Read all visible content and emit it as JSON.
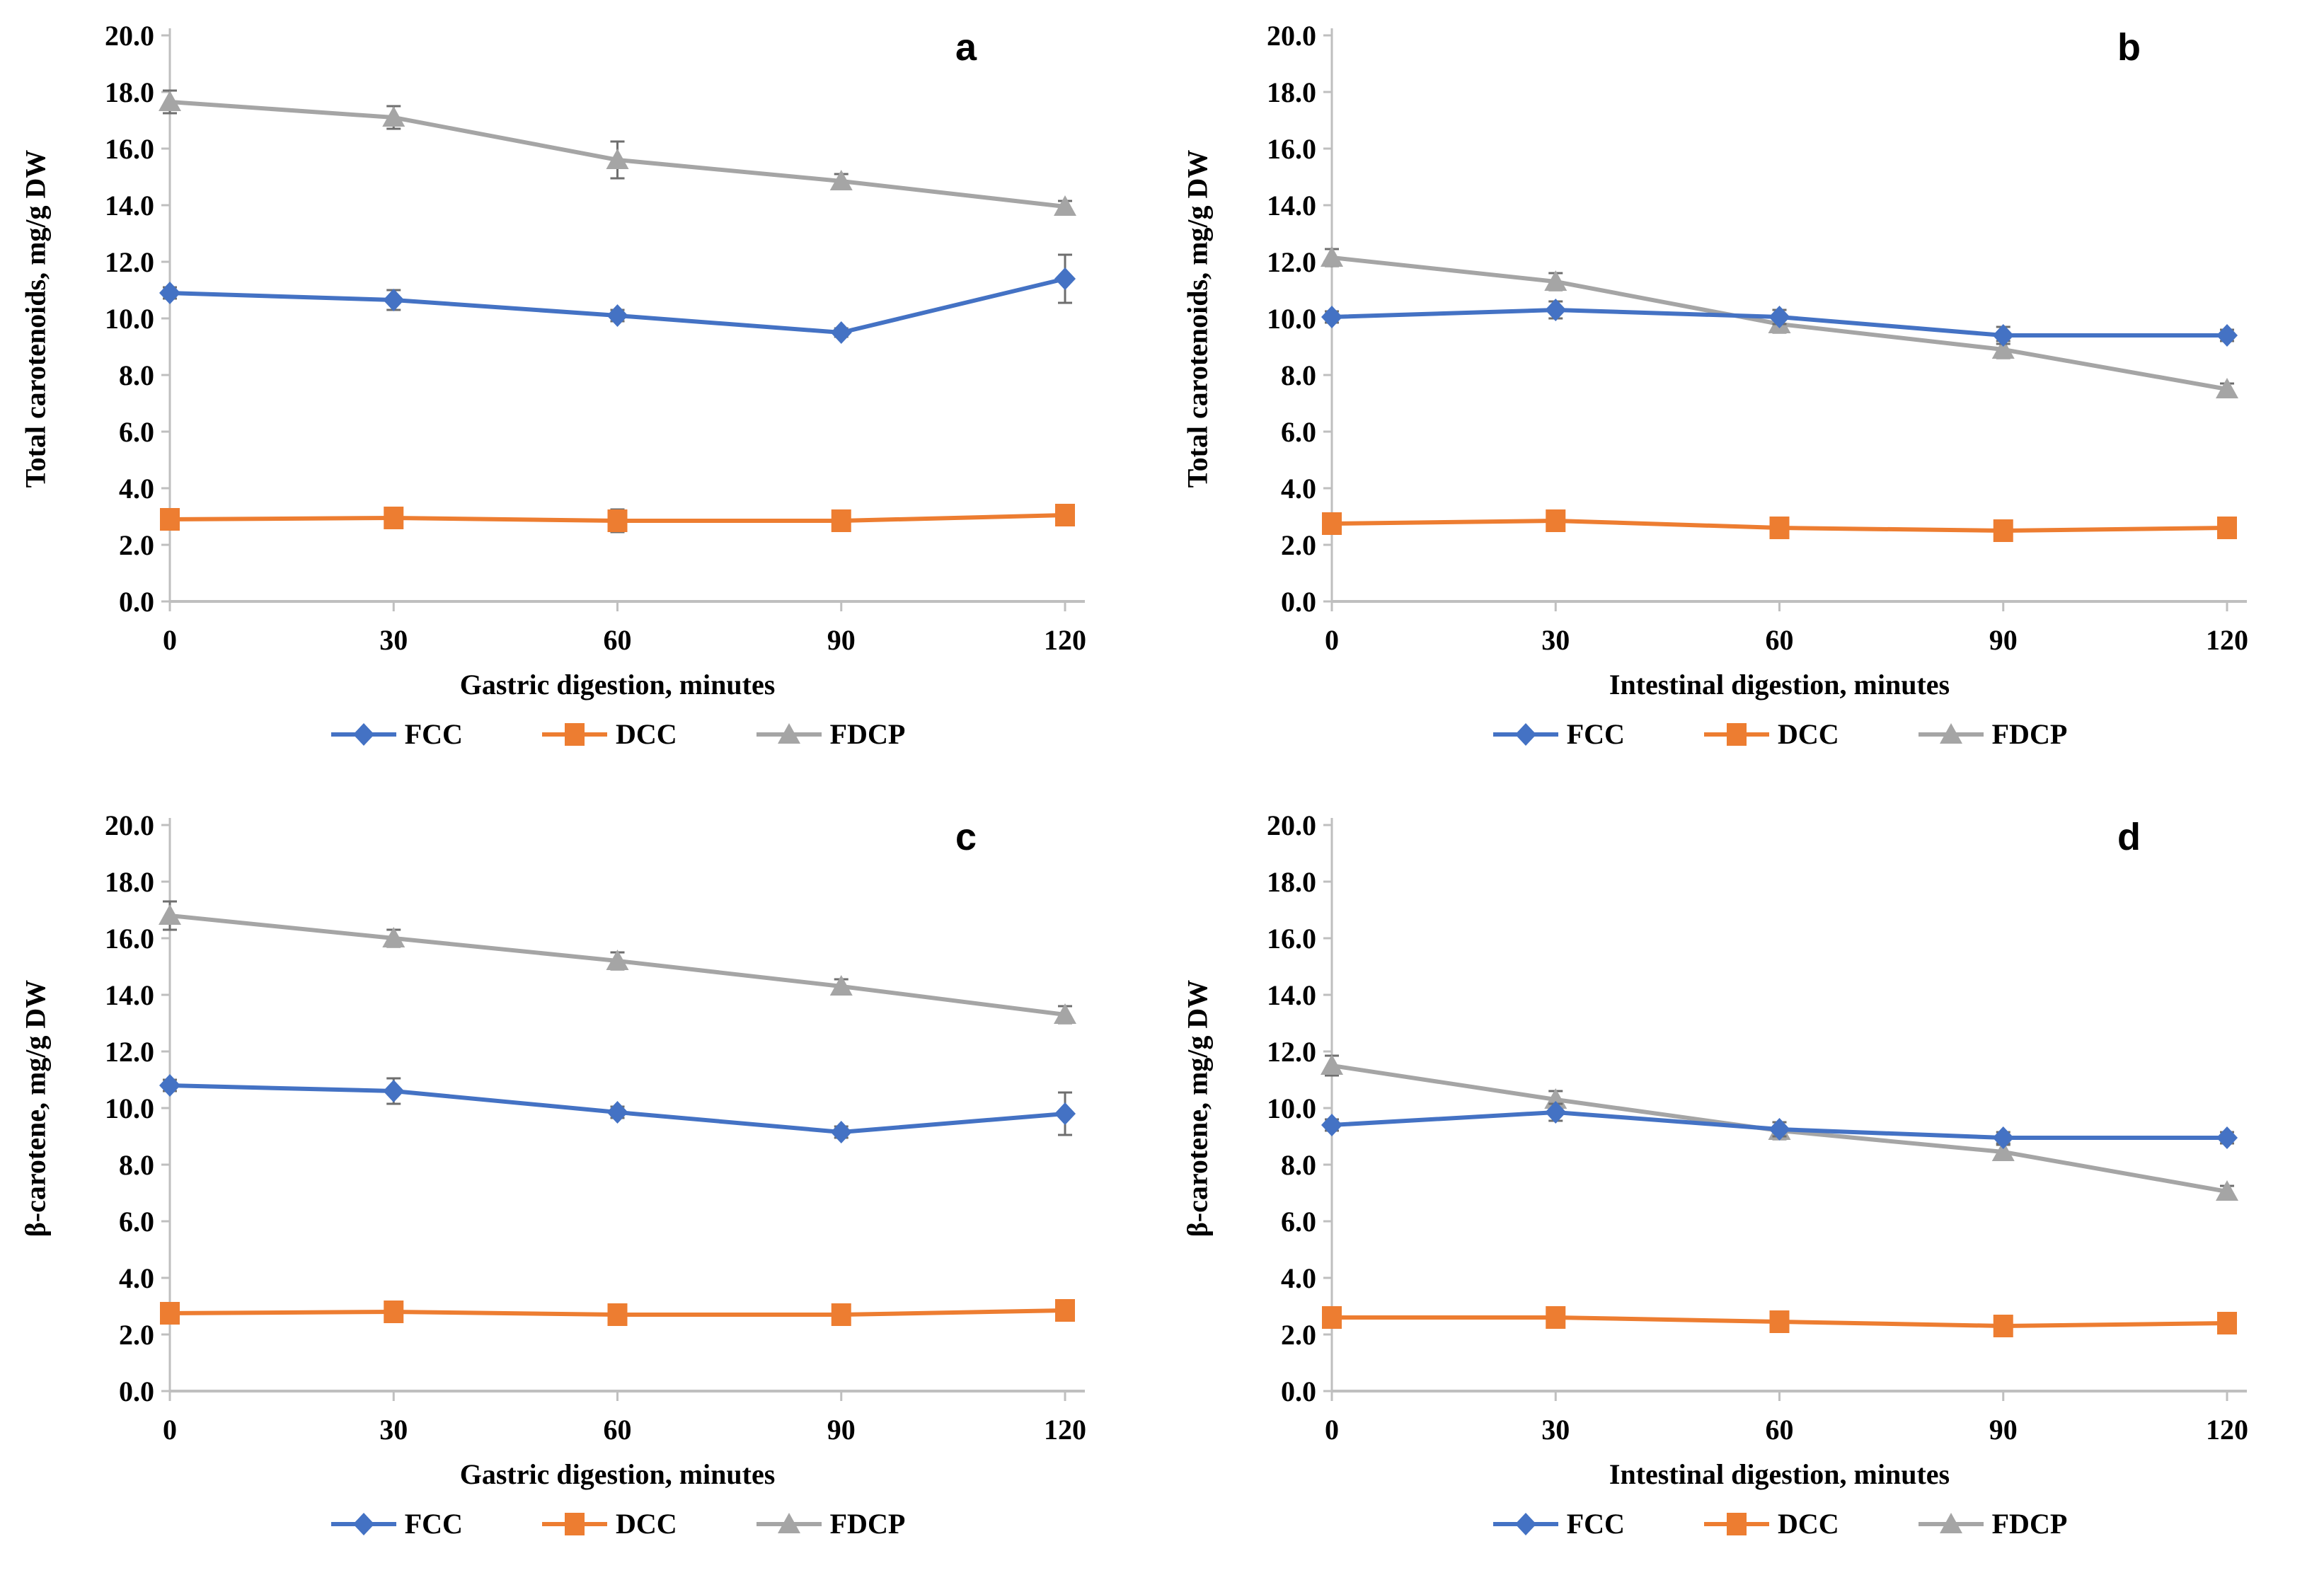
{
  "colors": {
    "fcc": "#4472C4",
    "dcc": "#ED7D31",
    "fdcp": "#A5A5A5",
    "error_bar": "#6e6e6e",
    "axis": "#BFBFBF",
    "text": "#000000"
  },
  "chart_data": [
    {
      "id": "a",
      "type": "line",
      "panel_label": "a",
      "ylabel": "Total carotenoids, mg/g DW",
      "xlabel": "Gastric digestion, minutes",
      "x": [
        0,
        30,
        60,
        90,
        120
      ],
      "ylim": [
        0,
        20
      ],
      "ytick_step": 2,
      "grid": false,
      "legend_position": "bottom",
      "series": [
        {
          "name": "FCC",
          "marker": "diamond",
          "color_key": "fcc",
          "values": [
            10.9,
            10.65,
            10.1,
            9.5,
            11.4
          ],
          "errors": [
            0.2,
            0.35,
            0.2,
            0.15,
            0.85
          ]
        },
        {
          "name": "DCC",
          "marker": "square",
          "color_key": "dcc",
          "values": [
            2.9,
            2.95,
            2.85,
            2.85,
            3.05
          ],
          "errors": [
            0.3,
            0.35,
            0.4,
            0.35,
            0.3
          ]
        },
        {
          "name": "FDCP",
          "marker": "triangle",
          "color_key": "fdcp",
          "values": [
            17.65,
            17.1,
            15.6,
            14.85,
            13.95
          ],
          "errors": [
            0.4,
            0.4,
            0.65,
            0.25,
            0.2
          ]
        }
      ]
    },
    {
      "id": "b",
      "type": "line",
      "panel_label": "b",
      "ylabel": "Total carotenoids, mg/g DW",
      "xlabel": "Intestinal digestion, minutes",
      "x": [
        0,
        30,
        60,
        90,
        120
      ],
      "ylim": [
        0,
        20
      ],
      "ytick_step": 2,
      "grid": false,
      "legend_position": "bottom",
      "series": [
        {
          "name": "FCC",
          "marker": "diamond",
          "color_key": "fcc",
          "values": [
            10.05,
            10.3,
            10.05,
            9.4,
            9.4
          ],
          "errors": [
            0.2,
            0.3,
            0.25,
            0.3,
            0.2
          ]
        },
        {
          "name": "DCC",
          "marker": "square",
          "color_key": "dcc",
          "values": [
            2.75,
            2.85,
            2.6,
            2.5,
            2.6
          ],
          "errors": [
            0.3,
            0.3,
            0.3,
            0.3,
            0.25
          ]
        },
        {
          "name": "FDCP",
          "marker": "triangle",
          "color_key": "fdcp",
          "values": [
            12.15,
            11.3,
            9.8,
            8.9,
            7.5
          ],
          "errors": [
            0.3,
            0.3,
            0.3,
            0.3,
            0.2
          ]
        }
      ]
    },
    {
      "id": "c",
      "type": "line",
      "panel_label": "c",
      "ylabel": "β-carotene, mg/g DW",
      "xlabel": "Gastric digestion, minutes",
      "x": [
        0,
        30,
        60,
        90,
        120
      ],
      "ylim": [
        0,
        20
      ],
      "ytick_step": 2,
      "grid": false,
      "legend_position": "bottom",
      "series": [
        {
          "name": "FCC",
          "marker": "diamond",
          "color_key": "fcc",
          "values": [
            10.8,
            10.6,
            9.85,
            9.15,
            9.8
          ],
          "errors": [
            0.2,
            0.45,
            0.2,
            0.2,
            0.75
          ]
        },
        {
          "name": "DCC",
          "marker": "square",
          "color_key": "dcc",
          "values": [
            2.75,
            2.8,
            2.7,
            2.7,
            2.85
          ],
          "errors": [
            0.3,
            0.35,
            0.3,
            0.3,
            0.3
          ]
        },
        {
          "name": "FDCP",
          "marker": "triangle",
          "color_key": "fdcp",
          "values": [
            16.8,
            16.0,
            15.2,
            14.3,
            13.3
          ],
          "errors": [
            0.5,
            0.3,
            0.3,
            0.25,
            0.3
          ]
        }
      ]
    },
    {
      "id": "d",
      "type": "line",
      "panel_label": "d",
      "ylabel": "β-carotene, mg/g DW",
      "xlabel": "Intestinal digestion, minutes",
      "x": [
        0,
        30,
        60,
        90,
        120
      ],
      "ylim": [
        0,
        20
      ],
      "ytick_step": 2,
      "grid": false,
      "legend_position": "bottom",
      "series": [
        {
          "name": "FCC",
          "marker": "diamond",
          "color_key": "fcc",
          "values": [
            9.4,
            9.85,
            9.25,
            8.95,
            8.95
          ],
          "errors": [
            0.2,
            0.3,
            0.25,
            0.2,
            0.2
          ]
        },
        {
          "name": "DCC",
          "marker": "square",
          "color_key": "dcc",
          "values": [
            2.6,
            2.6,
            2.45,
            2.3,
            2.4
          ],
          "errors": [
            0.3,
            0.3,
            0.35,
            0.35,
            0.35
          ]
        },
        {
          "name": "FDCP",
          "marker": "triangle",
          "color_key": "fdcp",
          "values": [
            11.5,
            10.3,
            9.2,
            8.45,
            7.05
          ],
          "errors": [
            0.35,
            0.3,
            0.3,
            0.25,
            0.2
          ]
        }
      ]
    }
  ]
}
